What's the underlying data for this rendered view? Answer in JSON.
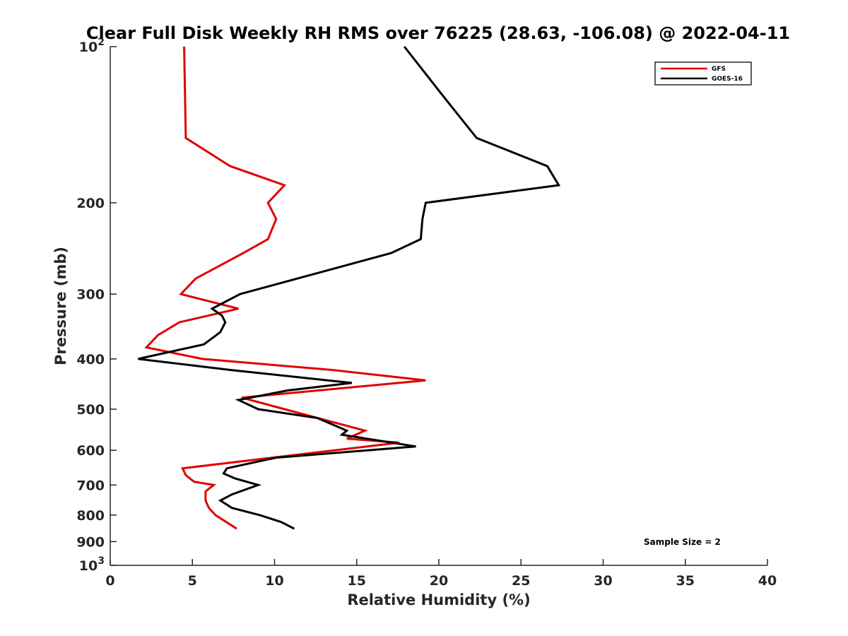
{
  "chart_data": {
    "type": "line",
    "title": "Clear Full Disk Weekly RH RMS over 76225 (28.63, -106.08) @ 2022-04-11",
    "xlabel": "Relative Humidity (%)",
    "ylabel": "Pressure (mb)",
    "xlim": [
      0,
      40
    ],
    "ylim": [
      100,
      1000
    ],
    "y_scale": "log",
    "y_reversed": true,
    "x_ticks": [
      0,
      5,
      10,
      15,
      20,
      25,
      30,
      35,
      40
    ],
    "y_ticks": [
      {
        "value": 100,
        "label": "10",
        "sup": "2"
      },
      {
        "value": 200,
        "label": "200",
        "sup": ""
      },
      {
        "value": 300,
        "label": "300",
        "sup": ""
      },
      {
        "value": 400,
        "label": "400",
        "sup": ""
      },
      {
        "value": 500,
        "label": "500",
        "sup": ""
      },
      {
        "value": 600,
        "label": "600",
        "sup": ""
      },
      {
        "value": 700,
        "label": "700",
        "sup": ""
      },
      {
        "value": 800,
        "label": "800",
        "sup": ""
      },
      {
        "value": 900,
        "label": "900",
        "sup": ""
      },
      {
        "value": 1000,
        "label": "10",
        "sup": "3"
      }
    ],
    "grid": false,
    "legend_position": "top-right",
    "annotation": "Sample Size = 2",
    "series": [
      {
        "name": "GFS",
        "color": "#e00000",
        "points": [
          [
            4.5,
            100
          ],
          [
            4.6,
            150
          ],
          [
            7.3,
            170
          ],
          [
            10.6,
            185
          ],
          [
            9.6,
            200
          ],
          [
            10.1,
            215
          ],
          [
            9.6,
            235
          ],
          [
            8.1,
            250
          ],
          [
            5.2,
            280
          ],
          [
            4.3,
            300
          ],
          [
            7.8,
            320
          ],
          [
            4.2,
            340
          ],
          [
            2.9,
            360
          ],
          [
            2.2,
            380
          ],
          [
            5.6,
            400
          ],
          [
            13.5,
            420
          ],
          [
            19.2,
            440
          ],
          [
            8.0,
            475
          ],
          [
            10.6,
            500
          ],
          [
            15.5,
            550
          ],
          [
            14.4,
            570
          ],
          [
            17.6,
            580
          ],
          [
            4.4,
            650
          ],
          [
            4.6,
            670
          ],
          [
            5.1,
            690
          ],
          [
            6.3,
            700
          ],
          [
            5.8,
            720
          ],
          [
            5.8,
            750
          ],
          [
            6.0,
            775
          ],
          [
            6.4,
            800
          ],
          [
            7.7,
            850
          ]
        ]
      },
      {
        "name": "GOES-16",
        "color": "#000000",
        "points": [
          [
            17.9,
            100
          ],
          [
            20.3,
            125
          ],
          [
            22.3,
            150
          ],
          [
            26.6,
            170
          ],
          [
            27.3,
            185
          ],
          [
            19.2,
            200
          ],
          [
            19.0,
            215
          ],
          [
            18.9,
            235
          ],
          [
            17.1,
            250
          ],
          [
            7.9,
            300
          ],
          [
            6.2,
            320
          ],
          [
            6.8,
            330
          ],
          [
            7.0,
            340
          ],
          [
            6.7,
            355
          ],
          [
            5.7,
            375
          ],
          [
            1.7,
            400
          ],
          [
            7.3,
            420
          ],
          [
            14.7,
            445
          ],
          [
            10.8,
            460
          ],
          [
            7.8,
            480
          ],
          [
            9.0,
            500
          ],
          [
            12.6,
            520
          ],
          [
            14.4,
            550
          ],
          [
            14.1,
            560
          ],
          [
            18.6,
            590
          ],
          [
            10.1,
            620
          ],
          [
            7.1,
            650
          ],
          [
            6.9,
            665
          ],
          [
            7.6,
            680
          ],
          [
            9.0,
            700
          ],
          [
            7.4,
            730
          ],
          [
            6.7,
            750
          ],
          [
            7.4,
            775
          ],
          [
            9.1,
            800
          ],
          [
            10.4,
            825
          ],
          [
            11.2,
            850
          ]
        ]
      }
    ]
  }
}
